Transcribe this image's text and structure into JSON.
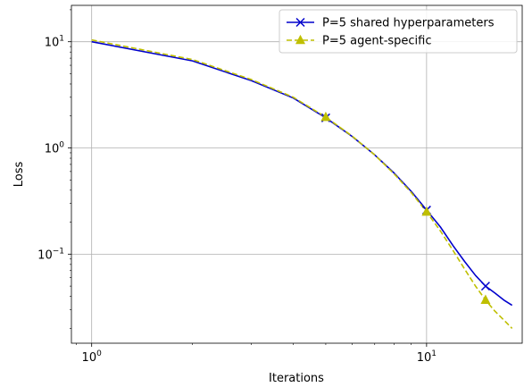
{
  "chart_data": {
    "type": "line",
    "title": "",
    "xlabel": "Iterations",
    "ylabel": "Loss",
    "xscale": "log",
    "yscale": "log",
    "xlim": [
      0.87,
      19.3
    ],
    "ylim": [
      0.0145,
      22
    ],
    "grid": true,
    "legend_position": "top-right",
    "xticks": [
      {
        "base": "10",
        "exp": "0",
        "value": 1
      },
      {
        "base": "10",
        "exp": "1",
        "value": 10
      }
    ],
    "yticks": [
      {
        "base": "10",
        "exp": "1",
        "value": 10
      },
      {
        "base": "10",
        "exp": "0",
        "value": 1
      },
      {
        "base": "10",
        "exp": "−1",
        "value": 0.1
      }
    ],
    "series": [
      {
        "name": "P=5 shared hyperparameters",
        "color": "#0000cc",
        "linestyle": "solid",
        "marker": "x",
        "marker_at": [
          5,
          10,
          15
        ],
        "x": [
          1,
          2,
          3,
          4,
          5,
          6,
          7,
          8,
          9,
          10,
          11,
          12,
          13,
          14,
          15,
          16,
          17,
          18
        ],
        "y": [
          10,
          6.6,
          4.3,
          2.95,
          1.92,
          1.28,
          0.86,
          0.58,
          0.39,
          0.26,
          0.18,
          0.12,
          0.085,
          0.063,
          0.05,
          0.043,
          0.037,
          0.033
        ]
      },
      {
        "name": "P=5 agent-specific",
        "color": "#bfbf00",
        "linestyle": "dashed",
        "marker": "triangle",
        "marker_at": [
          5,
          10,
          15
        ],
        "x": [
          1,
          2,
          3,
          4,
          5,
          6,
          7,
          8,
          9,
          10,
          11,
          12,
          13,
          14,
          15,
          16,
          17,
          18
        ],
        "y": [
          10.4,
          6.8,
          4.4,
          3.0,
          1.95,
          1.29,
          0.86,
          0.57,
          0.38,
          0.25,
          0.165,
          0.108,
          0.072,
          0.05,
          0.037,
          0.029,
          0.024,
          0.02
        ]
      }
    ]
  }
}
